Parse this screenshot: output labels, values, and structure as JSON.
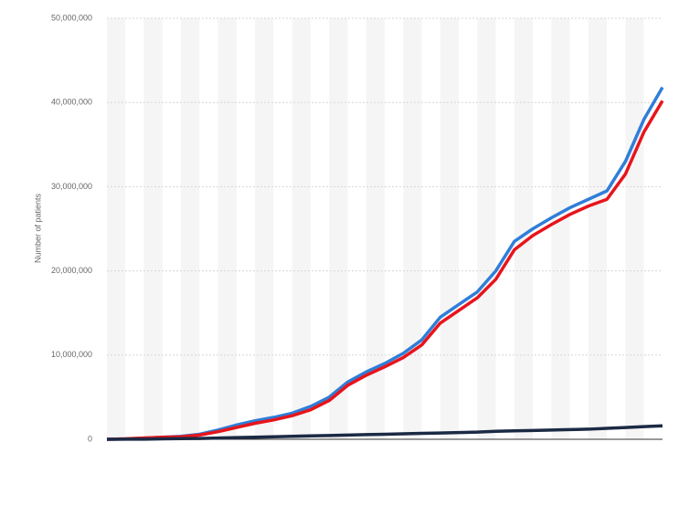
{
  "chart_data": {
    "type": "line",
    "y_label": "Number of patients",
    "categories": [
      null,
      null,
      null,
      null,
      null,
      null,
      null,
      null,
      null,
      null,
      null,
      null,
      null,
      null,
      null,
      null,
      null,
      null,
      null,
      null,
      null,
      null,
      null,
      null,
      null,
      null,
      null,
      null,
      null,
      null,
      null
    ],
    "series": [
      {
        "color": "#2f7ed8",
        "values": [
          0,
          50000,
          150000,
          250000,
          350000,
          600000,
          1100000,
          1700000,
          2200000,
          2600000,
          3100000,
          3900000,
          5000000,
          6800000,
          8000000,
          9000000,
          10200000,
          11800000,
          14500000,
          16000000,
          17500000,
          20000000,
          23500000,
          25000000,
          26300000,
          27500000,
          28500000,
          29500000,
          33000000,
          38000000,
          41800000
        ]
      },
      {
        "color": "#e8141b",
        "values": [
          0,
          50000,
          150000,
          250000,
          300000,
          500000,
          900000,
          1400000,
          1900000,
          2300000,
          2800000,
          3500000,
          4600000,
          6400000,
          7600000,
          8600000,
          9700000,
          11200000,
          13800000,
          15300000,
          16800000,
          19000000,
          22500000,
          24200000,
          25500000,
          26700000,
          27700000,
          28500000,
          31500000,
          36500000,
          40200000
        ]
      },
      {
        "color": "#1b2a44",
        "values": [
          0,
          10000,
          20000,
          50000,
          80000,
          100000,
          150000,
          200000,
          250000,
          300000,
          350000,
          400000,
          450000,
          500000,
          550000,
          600000,
          650000,
          700000,
          750000,
          800000,
          850000,
          950000,
          1000000,
          1050000,
          1100000,
          1150000,
          1200000,
          1300000,
          1400000,
          1500000,
          1600000
        ]
      }
    ],
    "ylim": [
      0,
      50000000
    ],
    "yticks": [
      0,
      {
        "value": 10000000,
        "label": "10,000,000"
      },
      {
        "value": 20000000,
        "label": "20,000,000"
      },
      {
        "value": 30000000,
        "label": "30,000,000"
      },
      {
        "value": 40000000,
        "label": "40,000,000"
      },
      {
        "value": 50000000,
        "label": "50,000,000"
      }
    ],
    "grid": true
  }
}
